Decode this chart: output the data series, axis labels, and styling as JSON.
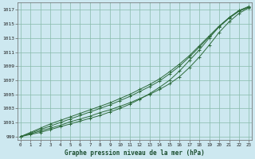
{
  "title": "Graphe pression niveau de la mer (hPa)",
  "bg_color": "#cde8f0",
  "plot_bg_color": "#cde8f0",
  "grid_color": "#88bbaa",
  "line_color": "#2d6b3c",
  "marker_color": "#2d6b3c",
  "xmin": 0,
  "xmax": 23,
  "ymin": 998.5,
  "ymax": 1018.0,
  "yticks": [
    999,
    1001,
    1003,
    1005,
    1007,
    1009,
    1011,
    1013,
    1015,
    1017
  ],
  "xticks": [
    0,
    1,
    2,
    3,
    4,
    5,
    6,
    7,
    8,
    9,
    10,
    11,
    12,
    13,
    14,
    15,
    16,
    17,
    18,
    19,
    20,
    21,
    22,
    23
  ],
  "series": [
    [
      999.0,
      999.4,
      999.8,
      1000.2,
      1000.6,
      1001.1,
      1001.5,
      1001.9,
      1002.4,
      1002.8,
      1003.3,
      1003.8,
      1004.4,
      1005.0,
      1005.7,
      1006.5,
      1007.5,
      1008.8,
      1010.3,
      1012.0,
      1013.8,
      1015.3,
      1016.5,
      1017.3
    ],
    [
      999.0,
      999.3,
      999.6,
      1000.0,
      1000.4,
      1000.8,
      1001.2,
      1001.6,
      1002.0,
      1002.5,
      1003.0,
      1003.6,
      1004.3,
      1005.1,
      1006.0,
      1007.0,
      1008.3,
      1009.8,
      1011.3,
      1013.0,
      1014.6,
      1015.9,
      1016.9,
      1017.4
    ],
    [
      999.0,
      999.5,
      1000.0,
      1000.5,
      1001.0,
      1001.5,
      1002.0,
      1002.5,
      1003.0,
      1003.5,
      1004.1,
      1004.7,
      1005.4,
      1006.1,
      1006.9,
      1007.9,
      1009.0,
      1010.3,
      1011.7,
      1013.2,
      1014.6,
      1015.8,
      1016.8,
      1017.4
    ],
    [
      999.0,
      999.6,
      1000.2,
      1000.8,
      1001.3,
      1001.8,
      1002.3,
      1002.8,
      1003.3,
      1003.8,
      1004.4,
      1005.0,
      1005.7,
      1006.4,
      1007.2,
      1008.2,
      1009.3,
      1010.5,
      1011.9,
      1013.3,
      1014.7,
      1015.9,
      1016.9,
      1017.5
    ]
  ]
}
